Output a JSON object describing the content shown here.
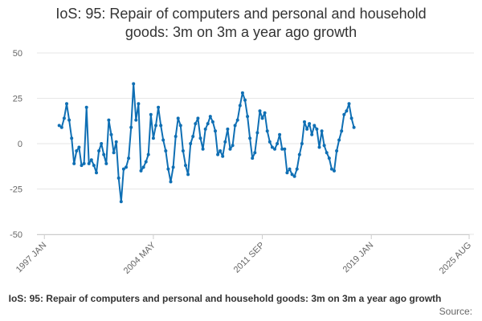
{
  "chart_data": {
    "type": "line",
    "title_line1": "IoS: 95: Repair of computers and personal and household",
    "title_line2": "goods: 3m on 3m a year ago growth",
    "source_label": "Source:",
    "legend_entry": "IoS: 95: Repair of computers and personal and household goods: 3m on 3m a year ago growth",
    "xlabel": "",
    "ylabel": "",
    "ylim": [
      -50,
      50
    ],
    "yticks": [
      "50",
      "25",
      "0",
      "-25",
      "-50"
    ],
    "xticks": [
      "1997 JAN",
      "2004 MAY",
      "2011 SEP",
      "2019 JAN",
      "2025 AUG"
    ],
    "x_range": [
      "1997 JAN",
      "2025 AUG"
    ],
    "grid": true,
    "series": [
      {
        "name": "IoS: 95: Repair of computers and personal and household goods: 3m on 3m a year ago growth",
        "color": "#0f6fb4",
        "points": [
          [
            "1998-01",
            10
          ],
          [
            "1998-03",
            9
          ],
          [
            "1998-05",
            14
          ],
          [
            "1998-07",
            22
          ],
          [
            "1998-09",
            13
          ],
          [
            "1998-11",
            3
          ],
          [
            "1999-01",
            -11
          ],
          [
            "1999-03",
            -4
          ],
          [
            "1999-05",
            -2
          ],
          [
            "1999-07",
            -12
          ],
          [
            "1999-09",
            -11
          ],
          [
            "1999-11",
            20
          ],
          [
            "2000-01",
            -11
          ],
          [
            "2000-03",
            -9
          ],
          [
            "2000-05",
            -12
          ],
          [
            "2000-07",
            -16
          ],
          [
            "2000-09",
            -4
          ],
          [
            "2000-11",
            0
          ],
          [
            "2001-01",
            -6
          ],
          [
            "2001-03",
            -11
          ],
          [
            "2001-05",
            13
          ],
          [
            "2001-07",
            5
          ],
          [
            "2001-09",
            -5
          ],
          [
            "2001-11",
            1
          ],
          [
            "2002-01",
            -19
          ],
          [
            "2002-03",
            -32
          ],
          [
            "2002-05",
            -14
          ],
          [
            "2002-07",
            -13
          ],
          [
            "2002-09",
            -8
          ],
          [
            "2002-11",
            9
          ],
          [
            "2003-01",
            33
          ],
          [
            "2003-03",
            13
          ],
          [
            "2003-05",
            22
          ],
          [
            "2003-07",
            -15
          ],
          [
            "2003-09",
            -13
          ],
          [
            "2003-11",
            -10
          ],
          [
            "2004-01",
            -6
          ],
          [
            "2004-03",
            16
          ],
          [
            "2004-05",
            3
          ],
          [
            "2004-07",
            10
          ],
          [
            "2004-09",
            20
          ],
          [
            "2004-11",
            10
          ],
          [
            "2005-01",
            2
          ],
          [
            "2005-03",
            -4
          ],
          [
            "2005-05",
            -14
          ],
          [
            "2005-07",
            -21
          ],
          [
            "2005-09",
            -13
          ],
          [
            "2005-11",
            4
          ],
          [
            "2006-01",
            14
          ],
          [
            "2006-03",
            10
          ],
          [
            "2006-05",
            -4
          ],
          [
            "2006-07",
            -12
          ],
          [
            "2006-09",
            -17
          ],
          [
            "2006-11",
            0
          ],
          [
            "2007-01",
            4
          ],
          [
            "2007-03",
            11
          ],
          [
            "2007-05",
            14
          ],
          [
            "2007-07",
            3
          ],
          [
            "2007-09",
            -3
          ],
          [
            "2007-11",
            8
          ],
          [
            "2008-01",
            11
          ],
          [
            "2008-03",
            15
          ],
          [
            "2008-05",
            12
          ],
          [
            "2008-07",
            7
          ],
          [
            "2008-09",
            -6
          ],
          [
            "2008-11",
            -4
          ],
          [
            "2009-01",
            -7
          ],
          [
            "2009-03",
            1
          ],
          [
            "2009-05",
            8
          ],
          [
            "2009-07",
            -3
          ],
          [
            "2009-09",
            -1
          ],
          [
            "2009-11",
            10
          ],
          [
            "2010-01",
            13
          ],
          [
            "2010-03",
            21
          ],
          [
            "2010-05",
            28
          ],
          [
            "2010-07",
            24
          ],
          [
            "2010-09",
            15
          ],
          [
            "2010-11",
            3
          ],
          [
            "2011-01",
            -8
          ],
          [
            "2011-03",
            -5
          ],
          [
            "2011-05",
            6
          ],
          [
            "2011-07",
            18
          ],
          [
            "2011-09",
            14
          ],
          [
            "2011-11",
            17
          ],
          [
            "2012-01",
            7
          ],
          [
            "2012-03",
            1
          ],
          [
            "2012-05",
            -2
          ],
          [
            "2012-07",
            -3
          ],
          [
            "2012-09",
            0
          ],
          [
            "2012-11",
            5
          ],
          [
            "2013-01",
            -3
          ],
          [
            "2013-03",
            -3
          ],
          [
            "2013-05",
            -16
          ],
          [
            "2013-07",
            -14
          ],
          [
            "2013-09",
            -17
          ],
          [
            "2013-11",
            -18
          ],
          [
            "2014-01",
            -14
          ],
          [
            "2014-03",
            -6
          ],
          [
            "2014-05",
            0
          ],
          [
            "2014-07",
            12
          ],
          [
            "2014-09",
            8
          ],
          [
            "2014-11",
            11
          ],
          [
            "2015-01",
            5
          ],
          [
            "2015-03",
            10
          ],
          [
            "2015-05",
            8
          ],
          [
            "2015-07",
            -2
          ],
          [
            "2015-09",
            7
          ],
          [
            "2015-11",
            -1
          ],
          [
            "2016-01",
            -5
          ],
          [
            "2016-03",
            -8
          ],
          [
            "2016-05",
            -14
          ],
          [
            "2016-07",
            -15
          ],
          [
            "2016-09",
            -4
          ],
          [
            "2016-11",
            2
          ],
          [
            "2017-01",
            7
          ],
          [
            "2017-03",
            16
          ],
          [
            "2017-05",
            18
          ],
          [
            "2017-07",
            22
          ],
          [
            "2017-09",
            14
          ],
          [
            "2017-11",
            9
          ]
        ]
      }
    ]
  }
}
